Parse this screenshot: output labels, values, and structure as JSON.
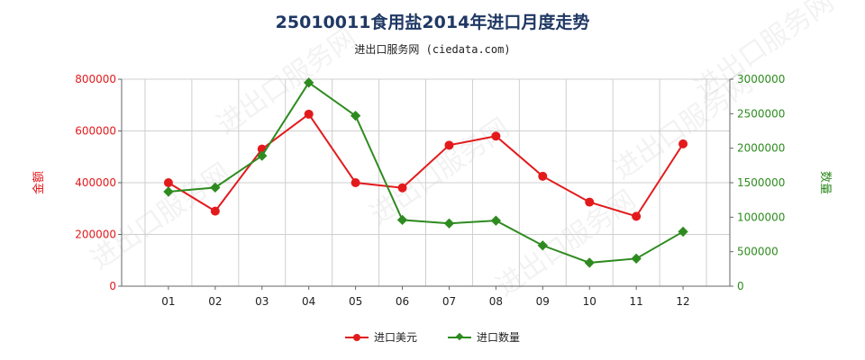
{
  "title": "25010011食用盐2014年进口月度走势",
  "subtitle": "进出口服务网 (ciedata.com)",
  "watermark": "进出口服务网",
  "colors": {
    "left": "#e31a1c",
    "right": "#2e8b1f",
    "grid": "#cfcfcf",
    "axis": "#666666"
  },
  "chart_data": {
    "type": "line",
    "categories": [
      "01",
      "02",
      "03",
      "04",
      "05",
      "06",
      "07",
      "08",
      "09",
      "10",
      "11",
      "12"
    ],
    "ylabel_left": "金额",
    "ylabel_right": "数量",
    "ylim_left": [
      0,
      800000
    ],
    "ylim_right": [
      0,
      3000000
    ],
    "yticks_left": [
      "0",
      "200000",
      "400000",
      "600000",
      "800000"
    ],
    "yticks_right": [
      "0",
      "500000",
      "1000000",
      "1500000",
      "2000000",
      "2500000",
      "3000000"
    ],
    "series": [
      {
        "name": "进口美元",
        "axis": "left",
        "color": "#e31a1c",
        "marker": "circle",
        "values": [
          400000,
          290000,
          530000,
          665000,
          400000,
          380000,
          545000,
          580000,
          425000,
          325000,
          270000,
          550000
        ]
      },
      {
        "name": "进口数量",
        "axis": "right",
        "color": "#2e8b1f",
        "marker": "diamond",
        "values": [
          1370000,
          1430000,
          1890000,
          2950000,
          2470000,
          960000,
          910000,
          950000,
          590000,
          340000,
          400000,
          790000
        ]
      }
    ],
    "grid": true,
    "legend": "bottom"
  }
}
